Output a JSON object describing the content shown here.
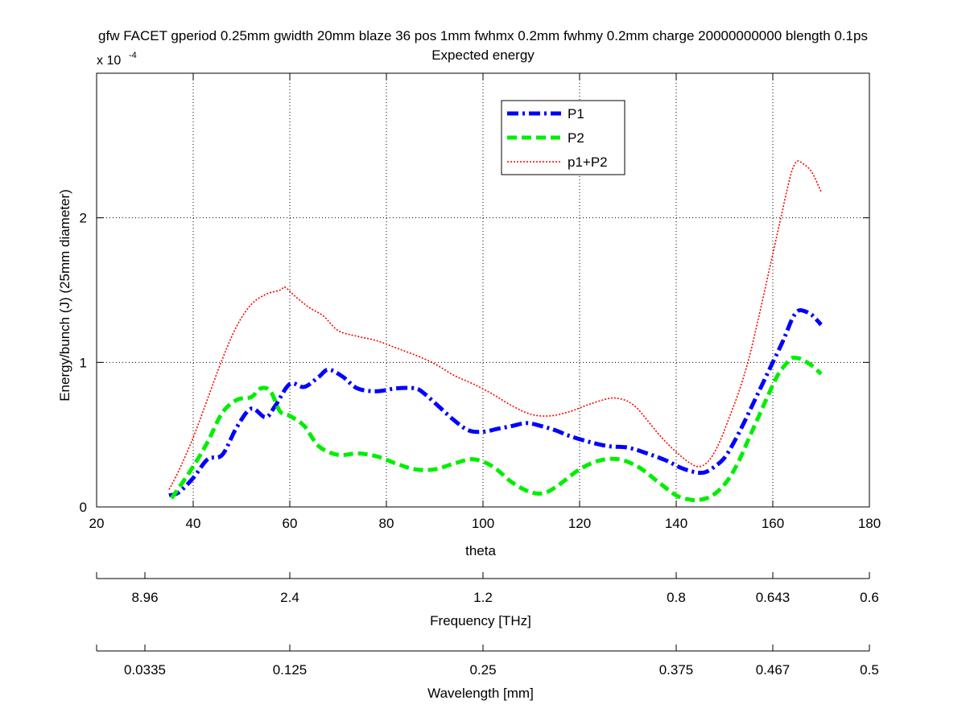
{
  "chart_data": {
    "type": "line",
    "title_line1": "gfw FACET gperiod 0.25mm gwidth 20mm blaze 36 pos 1mm fwhmx 0.2mm fwhmy 0.2mm charge 20000000000 blength 0.1ps",
    "title_line2": "Expected energy",
    "xlabel": "theta",
    "ylabel": "Energy/bunch (J) (25mm diameter)",
    "y_multiplier": "x 10",
    "y_multiplier_exp": "-4",
    "xlim": [
      20,
      180
    ],
    "ylim": [
      0,
      3
    ],
    "x_ticks": [
      20,
      40,
      60,
      80,
      100,
      120,
      140,
      160,
      180
    ],
    "y_ticks": [
      0,
      1,
      2
    ],
    "grid": true,
    "legend_position": "top-center",
    "series": [
      {
        "name": "P1",
        "color": "#0000ff",
        "style": "dash-dot",
        "x": [
          35,
          37,
          40,
          43,
          46,
          49,
          52,
          55,
          57,
          60,
          63,
          66,
          68,
          71,
          74,
          78,
          82,
          86,
          88,
          91,
          94,
          97,
          100,
          103,
          106,
          109,
          112,
          115,
          118,
          122,
          126,
          130,
          134,
          138,
          141,
          144,
          146,
          148,
          150,
          152,
          154,
          156,
          158,
          160,
          162,
          163,
          164,
          165,
          166,
          168,
          170
        ],
        "y": [
          0.08,
          0.1,
          0.2,
          0.33,
          0.36,
          0.55,
          0.68,
          0.62,
          0.7,
          0.85,
          0.83,
          0.9,
          0.95,
          0.9,
          0.82,
          0.8,
          0.82,
          0.82,
          0.78,
          0.69,
          0.6,
          0.53,
          0.52,
          0.54,
          0.56,
          0.58,
          0.56,
          0.53,
          0.49,
          0.45,
          0.42,
          0.41,
          0.37,
          0.32,
          0.27,
          0.24,
          0.24,
          0.28,
          0.34,
          0.45,
          0.58,
          0.72,
          0.86,
          1.0,
          1.14,
          1.22,
          1.3,
          1.35,
          1.36,
          1.33,
          1.26
        ]
      },
      {
        "name": "P2",
        "color": "#00ee00",
        "style": "dashed",
        "x": [
          35.5,
          37,
          40,
          43,
          46,
          49,
          52,
          54,
          56,
          58,
          60,
          63,
          66,
          70,
          74,
          78,
          82,
          86,
          90,
          94,
          98,
          102,
          106,
          110,
          113,
          116,
          120,
          124,
          128,
          132,
          136,
          140,
          143,
          145,
          147,
          149,
          151,
          153,
          155,
          157,
          159,
          161,
          163,
          164,
          165,
          166,
          168,
          170
        ],
        "y": [
          0.06,
          0.13,
          0.28,
          0.45,
          0.65,
          0.74,
          0.76,
          0.82,
          0.8,
          0.66,
          0.63,
          0.56,
          0.42,
          0.36,
          0.37,
          0.35,
          0.3,
          0.26,
          0.26,
          0.3,
          0.33,
          0.28,
          0.17,
          0.1,
          0.1,
          0.16,
          0.26,
          0.32,
          0.33,
          0.28,
          0.18,
          0.08,
          0.05,
          0.05,
          0.07,
          0.12,
          0.2,
          0.32,
          0.47,
          0.62,
          0.77,
          0.91,
          1.0,
          1.03,
          1.03,
          1.02,
          0.98,
          0.92
        ]
      },
      {
        "name": "p1+P2",
        "color": "#ff0000",
        "style": "dotted",
        "x": [
          35,
          37,
          40,
          43,
          46,
          49,
          52,
          55,
          58,
          59,
          61,
          64,
          67,
          70,
          74,
          78,
          82,
          86,
          90,
          94,
          98,
          102,
          106,
          110,
          114,
          118,
          122,
          126,
          128,
          130,
          132,
          134,
          137,
          140,
          143,
          145,
          147,
          149,
          151,
          153,
          155,
          157,
          159,
          161,
          162,
          163,
          164,
          165,
          166,
          168,
          170
        ],
        "y": [
          0.12,
          0.25,
          0.48,
          0.75,
          1.02,
          1.25,
          1.4,
          1.47,
          1.5,
          1.52,
          1.46,
          1.38,
          1.32,
          1.22,
          1.18,
          1.15,
          1.1,
          1.05,
          0.99,
          0.91,
          0.85,
          0.78,
          0.7,
          0.64,
          0.63,
          0.66,
          0.71,
          0.75,
          0.75,
          0.73,
          0.68,
          0.6,
          0.48,
          0.38,
          0.3,
          0.28,
          0.33,
          0.45,
          0.62,
          0.8,
          1.02,
          1.3,
          1.6,
          1.9,
          2.05,
          2.2,
          2.33,
          2.39,
          2.38,
          2.32,
          2.18
        ]
      }
    ]
  },
  "secondary_axes": [
    {
      "label": "Frequency [THz]",
      "tick_values": [
        20,
        30,
        60,
        100,
        140,
        160,
        180
      ],
      "tick_labels": [
        "",
        "8.96",
        "2.4",
        "1.2",
        "0.8",
        "0.643",
        "0.6"
      ]
    },
    {
      "label": "Wavelength [mm]",
      "tick_values": [
        20,
        30,
        60,
        100,
        140,
        160,
        180
      ],
      "tick_labels": [
        "",
        "0.0335",
        "0.125",
        "0.25",
        "0.375",
        "0.467",
        "0.5"
      ]
    }
  ]
}
